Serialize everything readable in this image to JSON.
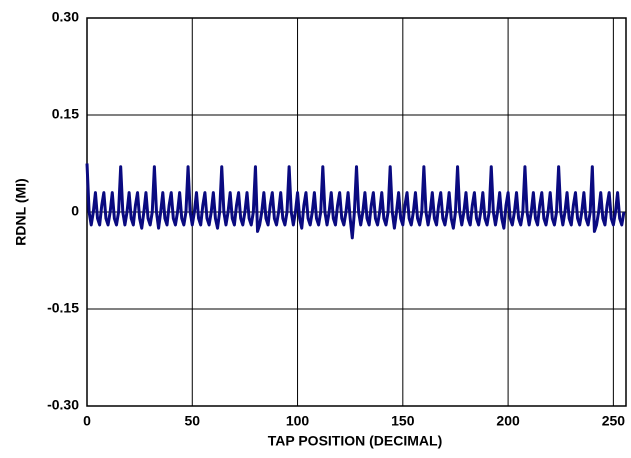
{
  "chart_data": {
    "type": "line",
    "xlabel": "TAP POSITION (DECIMAL)",
    "ylabel": "RDNL (MI)",
    "xlim": [
      0,
      256
    ],
    "xticks": [
      0,
      50,
      100,
      150,
      200,
      250
    ],
    "ylim": [
      -0.3,
      0.3
    ],
    "yticks": [
      {
        "value": -0.3,
        "label": "-0.30"
      },
      -0.15,
      0,
      0.15,
      {
        "value": 0.3,
        "label": "0.30"
      }
    ],
    "grid": true,
    "x": [
      0,
      1,
      2,
      3,
      4,
      5,
      6,
      7,
      8,
      9,
      10,
      11,
      12,
      13,
      14,
      15,
      16,
      17,
      18,
      19,
      20,
      21,
      22,
      23,
      24,
      25,
      26,
      27,
      28,
      29,
      30,
      31,
      32,
      33,
      34,
      35,
      36,
      37,
      38,
      39,
      40,
      41,
      42,
      43,
      44,
      45,
      46,
      47,
      48,
      49,
      50,
      51,
      52,
      53,
      54,
      55,
      56,
      57,
      58,
      59,
      60,
      61,
      62,
      63,
      64,
      65,
      66,
      67,
      68,
      69,
      70,
      71,
      72,
      73,
      74,
      75,
      76,
      77,
      78,
      79,
      80,
      81,
      82,
      83,
      84,
      85,
      86,
      87,
      88,
      89,
      90,
      91,
      92,
      93,
      94,
      95,
      96,
      97,
      98,
      99,
      100,
      101,
      102,
      103,
      104,
      105,
      106,
      107,
      108,
      109,
      110,
      111,
      112,
      113,
      114,
      115,
      116,
      117,
      118,
      119,
      120,
      121,
      122,
      123,
      124,
      125,
      126,
      127,
      128,
      129,
      130,
      131,
      132,
      133,
      134,
      135,
      136,
      137,
      138,
      139,
      140,
      141,
      142,
      143,
      144,
      145,
      146,
      147,
      148,
      149,
      150,
      151,
      152,
      153,
      154,
      155,
      156,
      157,
      158,
      159,
      160,
      161,
      162,
      163,
      164,
      165,
      166,
      167,
      168,
      169,
      170,
      171,
      172,
      173,
      174,
      175,
      176,
      177,
      178,
      179,
      180,
      181,
      182,
      183,
      184,
      185,
      186,
      187,
      188,
      189,
      190,
      191,
      192,
      193,
      194,
      195,
      196,
      197,
      198,
      199,
      200,
      201,
      202,
      203,
      204,
      205,
      206,
      207,
      208,
      209,
      210,
      211,
      212,
      213,
      214,
      215,
      216,
      217,
      218,
      219,
      220,
      221,
      222,
      223,
      224,
      225,
      226,
      227,
      228,
      229,
      230,
      231,
      232,
      233,
      234,
      235,
      236,
      237,
      238,
      239,
      240,
      241,
      242,
      243,
      244,
      245,
      246,
      247,
      248,
      249,
      250,
      251,
      252,
      253,
      254,
      255
    ],
    "series": [
      {
        "name": "RDNL",
        "color": "#0a0a80",
        "values": [
          0.075,
          0,
          -0.02,
          0,
          0.03,
          -0.01,
          -0.02,
          0.01,
          0.03,
          -0.01,
          -0.02,
          0,
          0.03,
          -0.01,
          -0.02,
          0,
          0.07,
          0,
          -0.02,
          0,
          0.03,
          -0.01,
          -0.02,
          0.01,
          0.03,
          -0.01,
          -0.025,
          0,
          0.03,
          -0.01,
          -0.02,
          0,
          0.07,
          0,
          -0.025,
          0,
          0.03,
          -0.01,
          -0.02,
          0.01,
          0.03,
          -0.01,
          -0.02,
          0,
          0.03,
          -0.01,
          -0.02,
          0,
          0.07,
          0,
          -0.02,
          0,
          0.03,
          -0.01,
          -0.02,
          0.01,
          0.03,
          -0.01,
          -0.02,
          0,
          0.03,
          -0.01,
          -0.025,
          0,
          0.07,
          0,
          -0.02,
          0,
          0.03,
          -0.01,
          -0.02,
          0.01,
          0.03,
          -0.01,
          -0.02,
          0,
          0.03,
          -0.01,
          -0.02,
          0,
          0.07,
          -0.03,
          -0.02,
          0,
          0.03,
          -0.01,
          -0.02,
          0.01,
          0.03,
          -0.01,
          -0.02,
          0,
          0.03,
          -0.01,
          -0.02,
          0,
          0.07,
          0,
          -0.02,
          0,
          0.03,
          -0.01,
          -0.025,
          0.01,
          0.03,
          -0.01,
          -0.02,
          0,
          0.03,
          -0.01,
          -0.02,
          0,
          0.07,
          0,
          -0.02,
          0,
          0.03,
          -0.01,
          -0.02,
          0.01,
          0.03,
          -0.01,
          -0.02,
          0,
          0.03,
          -0.01,
          -0.04,
          0,
          0.07,
          0,
          -0.02,
          0,
          0.03,
          -0.01,
          -0.02,
          0.01,
          0.03,
          -0.01,
          -0.02,
          0,
          0.03,
          -0.01,
          -0.02,
          0,
          0.07,
          0,
          -0.025,
          0,
          0.03,
          -0.01,
          -0.02,
          0.01,
          0.03,
          -0.01,
          -0.02,
          0,
          0.03,
          -0.01,
          -0.02,
          0,
          0.07,
          0,
          -0.02,
          0,
          0.03,
          -0.01,
          -0.02,
          0.01,
          0.03,
          -0.01,
          -0.02,
          0,
          0.03,
          -0.01,
          -0.025,
          0,
          0.07,
          0,
          -0.02,
          0,
          0.03,
          -0.01,
          -0.02,
          0.01,
          0.03,
          -0.01,
          -0.02,
          0,
          0.03,
          -0.01,
          -0.02,
          0,
          0.07,
          0,
          -0.02,
          0,
          0.03,
          -0.01,
          -0.025,
          0.01,
          0.03,
          -0.01,
          -0.02,
          0,
          0.03,
          -0.01,
          -0.02,
          0,
          0.07,
          0,
          -0.02,
          0,
          0.03,
          -0.01,
          -0.02,
          0.01,
          0.03,
          -0.01,
          -0.02,
          0,
          0.03,
          -0.01,
          -0.02,
          0,
          0.07,
          0,
          -0.02,
          0,
          0.03,
          -0.01,
          -0.02,
          0.01,
          0.03,
          -0.01,
          -0.02,
          0,
          0.03,
          -0.01,
          -0.02,
          0,
          0.07,
          -0.03,
          -0.02,
          0,
          0.03,
          -0.01,
          -0.02,
          0.01,
          0.03,
          -0.01,
          -0.02,
          0,
          0.03,
          -0.01,
          -0.02,
          0
        ]
      }
    ]
  }
}
